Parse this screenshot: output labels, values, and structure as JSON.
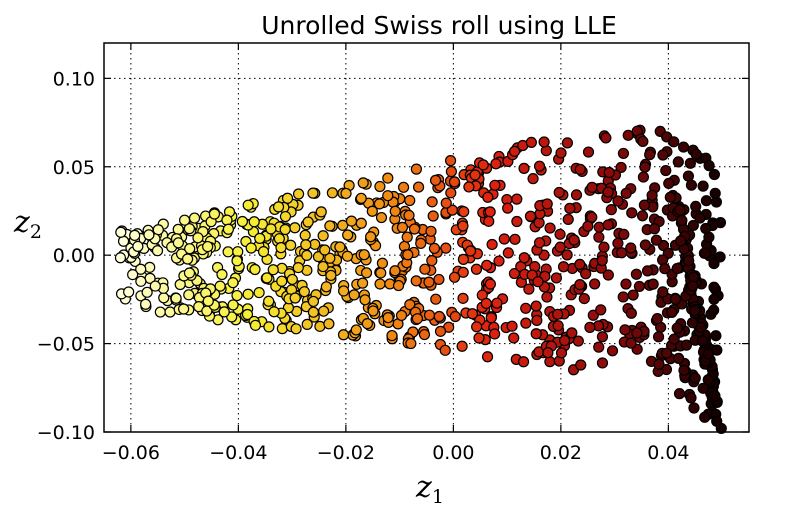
{
  "chart_data": {
    "type": "scatter",
    "title": "Unrolled Swiss roll using LLE",
    "xlabel": {
      "base": "z",
      "sub": "1"
    },
    "ylabel": {
      "base": "z",
      "sub": "2"
    },
    "xlim": [
      -0.065,
      0.055
    ],
    "ylim": [
      -0.1,
      0.12
    ],
    "xticks": [
      -0.06,
      -0.04,
      -0.02,
      0.0,
      0.02,
      0.04
    ],
    "xtick_labels": [
      "−0.06",
      "−0.04",
      "−0.02",
      "0.00",
      "0.02",
      "0.04"
    ],
    "yticks": [
      -0.1,
      -0.05,
      0.0,
      0.05,
      0.1
    ],
    "ytick_labels": [
      "−0.10",
      "−0.05",
      "0.00",
      "0.05",
      "0.10"
    ],
    "grid": true,
    "colormap": "hot_r",
    "colors": {
      "low": "#ffffd4",
      "mid1": "#f3e92a",
      "mid2": "#f08a10",
      "mid3": "#e02010",
      "high": "#1a0000"
    },
    "point_count": 1000,
    "seed": 42
  }
}
